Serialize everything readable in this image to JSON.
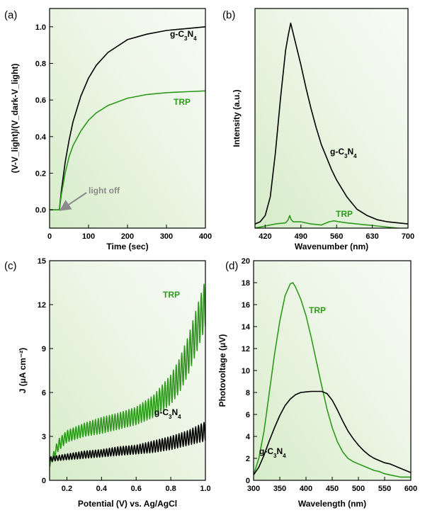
{
  "figure": {
    "panels": [
      "(a)",
      "(b)",
      "(c)",
      "(d)"
    ]
  },
  "colors": {
    "black_series": "#000000",
    "green_series": "#2e9a1c",
    "arrow": "#8a8a8a"
  },
  "chart_data": [
    {
      "id": "a",
      "panel_label": "(a)",
      "type": "line",
      "xlabel": "Time (sec)",
      "ylabel": "(V-V_light)/(V_dark-V_light)",
      "xlim": [
        0,
        400
      ],
      "ylim": [
        -0.1,
        1.1
      ],
      "xticks": [
        0,
        100,
        200,
        300,
        400
      ],
      "yticks": [
        0.0,
        0.2,
        0.4,
        0.6,
        0.8,
        1.0
      ],
      "ytick_labels": [
        "0.0",
        "0.2",
        "0.4",
        "0.6",
        "0.8",
        "1.0"
      ],
      "annotation": {
        "text": "light off",
        "x": 30,
        "y": 0.0
      },
      "series": [
        {
          "name": "g-C3N4",
          "label": "g-C3N4",
          "x": [
            0,
            20,
            25,
            30,
            40,
            50,
            60,
            80,
            100,
            120,
            150,
            200,
            250,
            300,
            350,
            400
          ],
          "y": [
            0,
            0,
            0,
            0.1,
            0.26,
            0.38,
            0.48,
            0.62,
            0.72,
            0.79,
            0.86,
            0.93,
            0.96,
            0.98,
            0.99,
            1.0
          ]
        },
        {
          "name": "TRP",
          "label": "TRP",
          "x": [
            0,
            20,
            25,
            30,
            40,
            50,
            60,
            80,
            100,
            120,
            150,
            200,
            250,
            300,
            350,
            400
          ],
          "y": [
            0,
            0,
            0,
            0.08,
            0.2,
            0.29,
            0.35,
            0.43,
            0.49,
            0.53,
            0.57,
            0.61,
            0.63,
            0.64,
            0.645,
            0.65
          ]
        }
      ]
    },
    {
      "id": "b",
      "panel_label": "(b)",
      "type": "line",
      "xlabel": "Wavenumber (nm)",
      "ylabel": "Intensity (a.u.)",
      "xlim": [
        400,
        700
      ],
      "ylim": [
        0,
        1.05
      ],
      "xticks": [
        420,
        490,
        560,
        630,
        700
      ],
      "yticks": [],
      "series": [
        {
          "name": "g-C3N4",
          "label": "g-C3N4",
          "x": [
            400,
            410,
            420,
            430,
            440,
            450,
            460,
            465,
            470,
            475,
            480,
            490,
            500,
            510,
            520,
            530,
            540,
            550,
            560,
            570,
            580,
            590,
            600,
            620,
            640,
            660,
            680,
            700
          ],
          "y": [
            0.02,
            0.03,
            0.06,
            0.15,
            0.36,
            0.62,
            0.85,
            0.92,
            0.98,
            0.93,
            0.88,
            0.78,
            0.67,
            0.57,
            0.48,
            0.4,
            0.34,
            0.28,
            0.23,
            0.19,
            0.15,
            0.12,
            0.09,
            0.06,
            0.04,
            0.03,
            0.025,
            0.02
          ]
        },
        {
          "name": "TRP",
          "label": "TRP",
          "x": [
            400,
            420,
            440,
            460,
            465,
            468,
            471,
            475,
            490,
            510,
            530,
            545,
            555,
            565,
            580,
            600,
            620,
            640,
            660,
            680,
            700
          ],
          "y": [
            0.0,
            0.01,
            0.02,
            0.025,
            0.04,
            0.06,
            0.04,
            0.03,
            0.03,
            0.02,
            0.015,
            0.03,
            0.035,
            0.03,
            0.025,
            0.02,
            0.015,
            0.01,
            0.005,
            0.0,
            -0.005
          ]
        }
      ]
    },
    {
      "id": "c",
      "panel_label": "(c)",
      "type": "line",
      "xlabel": "Potential (V) vs. Ag/AgCl",
      "ylabel": "J (μA cm⁻²)",
      "xlim": [
        0.1,
        1.0
      ],
      "ylim": [
        0,
        15
      ],
      "xticks": [
        0.2,
        0.4,
        0.6,
        0.8,
        1.0
      ],
      "xtick_labels": [
        "0.2",
        "0.4",
        "0.6",
        "0.8",
        "1.0"
      ],
      "yticks": [
        0,
        3,
        6,
        9,
        12,
        15
      ],
      "oscillation_cycles": 56,
      "series": [
        {
          "name": "TRP",
          "label": "TRP",
          "x": [
            0.1,
            0.15,
            0.2,
            0.3,
            0.4,
            0.5,
            0.6,
            0.7,
            0.8,
            0.85,
            0.9,
            0.95,
            1.0
          ],
          "dark": [
            0.9,
            2.0,
            2.6,
            3.0,
            3.2,
            3.5,
            3.8,
            4.3,
            5.2,
            6.0,
            7.2,
            8.8,
            10.5
          ],
          "light": [
            1.2,
            2.8,
            3.4,
            3.9,
            4.3,
            4.6,
            5.0,
            5.8,
            7.2,
            8.3,
            9.8,
            11.8,
            13.7
          ]
        },
        {
          "name": "g-C3N4",
          "label": "g-C3N4",
          "x": [
            0.1,
            0.2,
            0.3,
            0.4,
            0.5,
            0.6,
            0.7,
            0.8,
            0.9,
            1.0
          ],
          "dark": [
            1.3,
            1.4,
            1.5,
            1.6,
            1.7,
            1.8,
            1.9,
            2.1,
            2.4,
            2.7
          ],
          "light": [
            1.6,
            1.8,
            2.0,
            2.1,
            2.3,
            2.4,
            2.7,
            3.0,
            3.4,
            4.0
          ]
        }
      ]
    },
    {
      "id": "d",
      "panel_label": "(d)",
      "type": "line",
      "xlabel": "Wavelength (nm)",
      "ylabel": "Photovoltage (μV)",
      "xlim": [
        300,
        600
      ],
      "ylim": [
        0,
        20
      ],
      "xticks": [
        300,
        350,
        400,
        450,
        500,
        550,
        600
      ],
      "yticks": [
        0,
        2,
        4,
        6,
        8,
        10,
        12,
        14,
        16,
        18,
        20
      ],
      "series": [
        {
          "name": "TRP",
          "label": "TRP",
          "x": [
            300,
            310,
            320,
            330,
            340,
            350,
            360,
            370,
            375,
            380,
            390,
            400,
            410,
            420,
            430,
            440,
            450,
            460,
            470,
            480,
            490,
            500,
            510,
            520,
            530,
            540,
            550,
            560,
            570,
            580,
            590,
            600
          ],
          "y": [
            0.5,
            2.0,
            4.5,
            8.0,
            11.5,
            14.5,
            16.8,
            17.9,
            18.0,
            17.6,
            16.5,
            15.0,
            13.0,
            10.8,
            8.6,
            6.5,
            4.8,
            3.5,
            2.6,
            2.0,
            1.7,
            1.5,
            1.3,
            1.1,
            0.9,
            0.8,
            0.6,
            0.5,
            0.4,
            0.3,
            0.3,
            0.3
          ]
        },
        {
          "name": "g-C3N4",
          "label": "g-C3N4",
          "x": [
            300,
            310,
            320,
            330,
            340,
            350,
            360,
            370,
            380,
            390,
            400,
            410,
            420,
            430,
            440,
            450,
            460,
            470,
            480,
            490,
            500,
            510,
            520,
            530,
            540,
            550,
            560,
            570,
            580,
            590,
            600
          ],
          "y": [
            0.5,
            1.2,
            2.3,
            3.6,
            4.8,
            5.9,
            6.8,
            7.4,
            7.8,
            8.0,
            8.05,
            8.1,
            8.1,
            8.1,
            7.9,
            7.3,
            6.4,
            5.4,
            4.5,
            3.8,
            3.2,
            2.7,
            2.3,
            2.0,
            1.8,
            1.6,
            1.5,
            1.3,
            1.1,
            0.9,
            0.7
          ]
        }
      ]
    }
  ]
}
